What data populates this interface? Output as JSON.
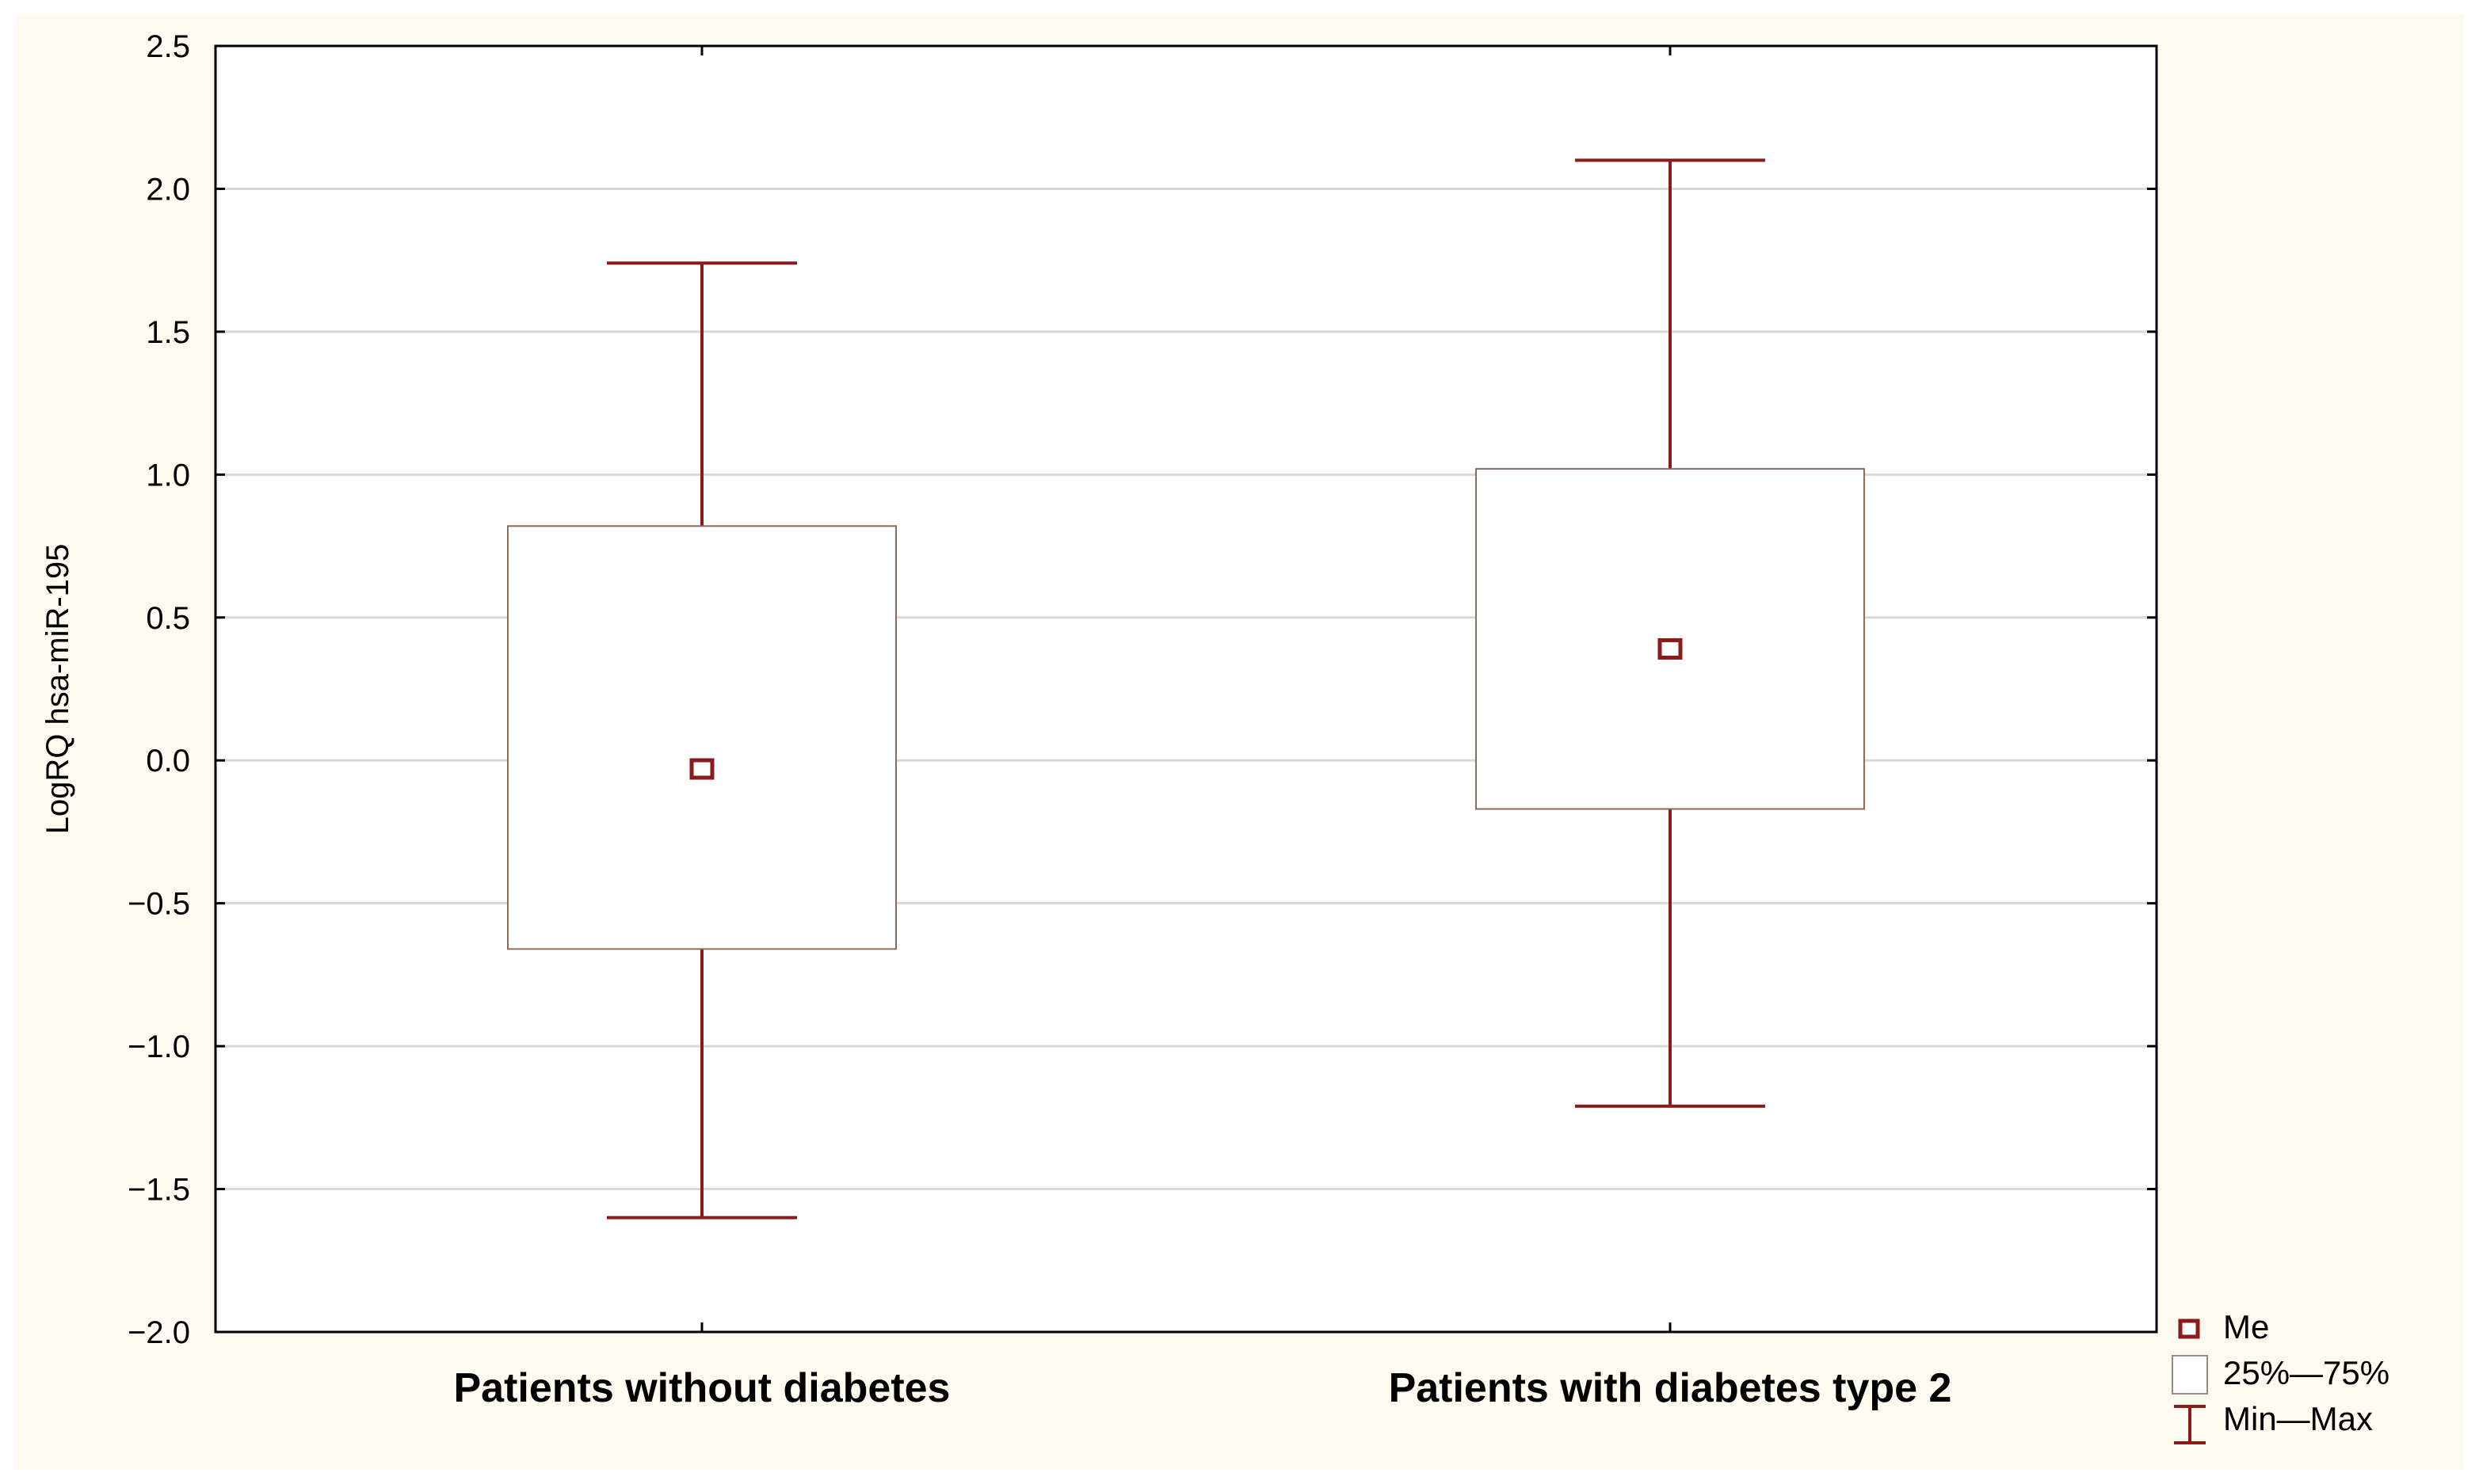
{
  "chart_data": {
    "type": "box",
    "title": "",
    "xlabel": "",
    "ylabel": "LogRQ hsa-miR-195",
    "ylim": [
      -2.0,
      2.5
    ],
    "yticks": [
      2.5,
      2.0,
      1.5,
      1.0,
      0.5,
      0.0,
      -0.5,
      -1.0,
      -1.5,
      -2.0
    ],
    "ytick_labels": [
      "2.5",
      "2.0",
      "1.5",
      "1.0",
      "0.5",
      "0.0",
      "−0.5",
      "−1.0",
      "−1.5",
      "−2.0"
    ],
    "grid": true,
    "legend_position": "bottom-right, outside plot",
    "categories": [
      "Patients without diabetes",
      "Patients with diabetes type 2"
    ],
    "groups": [
      {
        "name": "Patients without diabetes",
        "min": -1.6,
        "q1": -0.66,
        "median": -0.03,
        "q3": 0.82,
        "max": 1.74
      },
      {
        "name": "Patients with diabetes type 2",
        "min": -1.21,
        "q1": -0.17,
        "median": 0.39,
        "q3": 1.02,
        "max": 2.1
      }
    ],
    "legend": [
      {
        "symbol": "square-marker",
        "label": "Me"
      },
      {
        "symbol": "box",
        "label": "25%—75%"
      },
      {
        "symbol": "whisker",
        "label": "Min—Max"
      }
    ],
    "colors": {
      "whisker": "#8b1a1a",
      "median_marker": "#8b1a1a",
      "grid": "#d8d8d8",
      "background": "#fdfaf0",
      "box_fill": "#ffffff"
    }
  }
}
